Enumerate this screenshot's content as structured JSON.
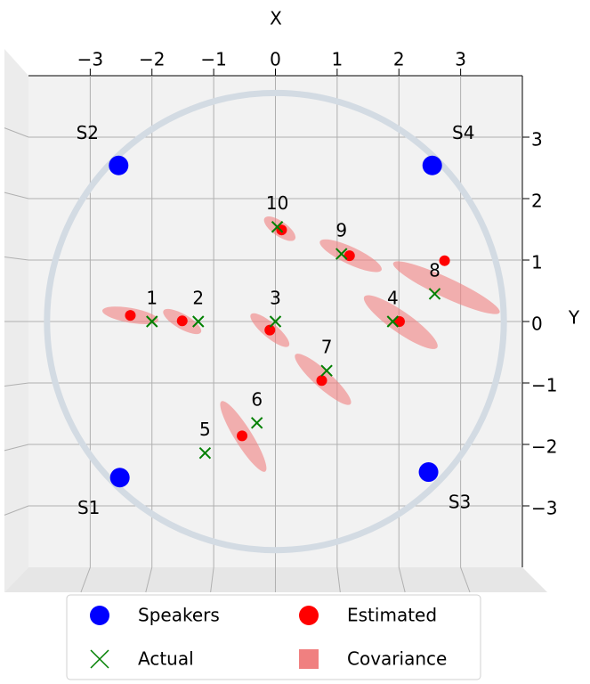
{
  "chart_data": {
    "type": "scatter",
    "xlabel": "X",
    "ylabel": "Y",
    "xlim": [
      -4,
      4
    ],
    "ylim": [
      -4,
      4
    ],
    "xticks": [
      {
        "value": -3,
        "label": "−3"
      },
      {
        "value": -2,
        "label": "−2"
      },
      {
        "value": -1,
        "label": "−1"
      },
      0,
      1,
      2,
      3
    ],
    "yticks": [
      {
        "value": -3,
        "label": "−3"
      },
      {
        "value": -2,
        "label": "−2"
      },
      {
        "value": -1,
        "label": "−1"
      },
      0,
      1,
      2,
      3
    ],
    "grid": true,
    "room_radius": 3.7,
    "series": [
      {
        "name": "Speakers",
        "color": "#0000ff",
        "marker": "circle",
        "labels": [
          "S1",
          "S2",
          "S3",
          "S4"
        ],
        "x": [
          -2.52,
          -2.54,
          2.48,
          2.54
        ],
        "values": [
          -2.54,
          2.54,
          -2.45,
          2.54
        ]
      },
      {
        "name": "Actual",
        "color": "#008000",
        "marker": "x",
        "labels": [
          "1",
          "2",
          "3",
          "4",
          "5",
          "6",
          "7",
          "8",
          "9",
          "10"
        ],
        "x": [
          -2,
          -1.25,
          0,
          1.9,
          -1.14,
          -0.3,
          0.83,
          2.58,
          1.07,
          0.03
        ],
        "values": [
          0,
          0,
          0,
          0,
          -2.14,
          -1.65,
          -0.8,
          0.45,
          1.1,
          1.54
        ]
      },
      {
        "name": "Estimated",
        "color": "#ff0000",
        "marker": "circle",
        "x": [
          -2.35,
          -1.51,
          -0.09,
          2.01,
          null,
          -0.54,
          0.75,
          2.74,
          1.2,
          0.1
        ],
        "values": [
          0.1,
          0.01,
          -0.14,
          0,
          null,
          -1.86,
          -0.96,
          0.99,
          1.07,
          1.49
        ]
      },
      {
        "name": "Covariance",
        "color": "#f08080",
        "marker": "ellipse",
        "x": [
          -2.35,
          -1.51,
          -0.09,
          2.03,
          null,
          -0.52,
          0.77,
          2.77,
          1.22,
          0.07
        ],
        "values": [
          0.1,
          0.0,
          -0.14,
          -0.01,
          null,
          -1.87,
          -0.94,
          0.55,
          1.07,
          1.51
        ],
        "rx": [
          0.46,
          0.35,
          0.4,
          0.72,
          null,
          0.67,
          0.6,
          0.95,
          0.55,
          0.3
        ],
        "ry": [
          0.12,
          0.12,
          0.12,
          0.17,
          null,
          0.14,
          0.14,
          0.16,
          0.14,
          0.12
        ],
        "angle": [
          -10,
          -30,
          -40,
          -35,
          null,
          -58,
          -42,
          -25,
          -25,
          -35
        ]
      }
    ]
  }
}
